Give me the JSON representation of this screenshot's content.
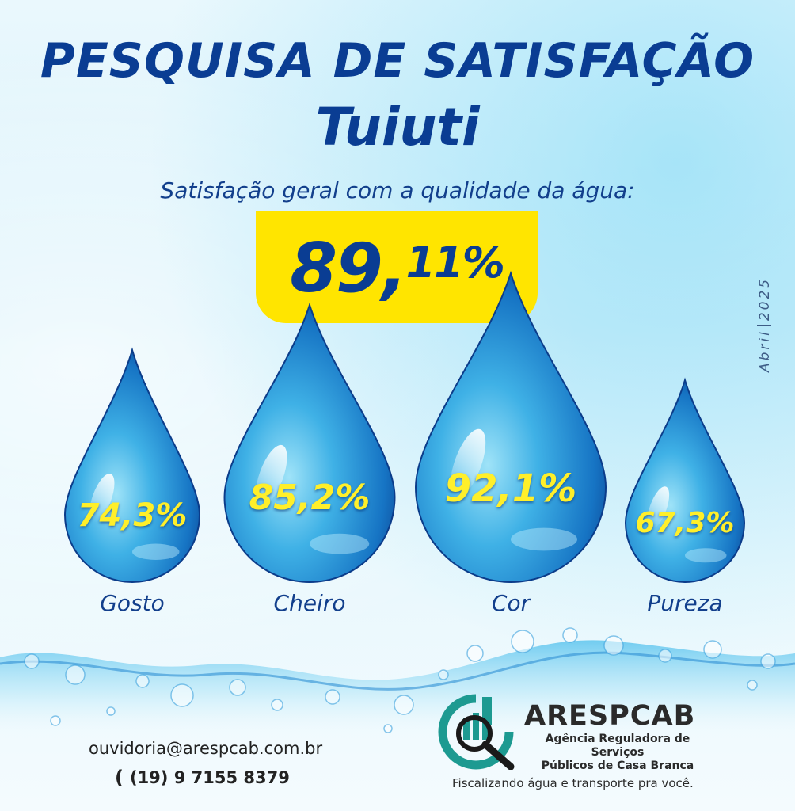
{
  "header": {
    "title": "PESQUISA DE SATISFAÇÃO",
    "location": "Tuiuti",
    "subtitle": "Satisfação geral com a qualidade da água:"
  },
  "overall": {
    "int": "89,",
    "dec": "11%",
    "value": 89.11
  },
  "date": {
    "month": "Abril",
    "year": "2025"
  },
  "drops": [
    {
      "label": "Gosto",
      "value_text": "74,3%",
      "value": 74.3
    },
    {
      "label": "Cheiro",
      "value_text": "85,2%",
      "value": 85.2
    },
    {
      "label": "Cor",
      "value_text": "92,1%",
      "value": 92.1
    },
    {
      "label": "Pureza",
      "value_text": "67,3%",
      "value": 67.3
    }
  ],
  "contact": {
    "email": "ouvidoria@arespcab.com.br",
    "phone": "(19) 9 7155 8379",
    "phone_icon": "phone-icon"
  },
  "organization": {
    "name": "ARESPCAB",
    "line1": "Agência Reguladora de Serviços",
    "line2": "Públicos de Casa Branca",
    "slogan": "Fiscalizando água e transporte pra você."
  },
  "colors": {
    "title": "#0a3d93",
    "highlight": "#ffe500",
    "drop_value": "#ffef2a",
    "logo_teal": "#1d9a91"
  }
}
